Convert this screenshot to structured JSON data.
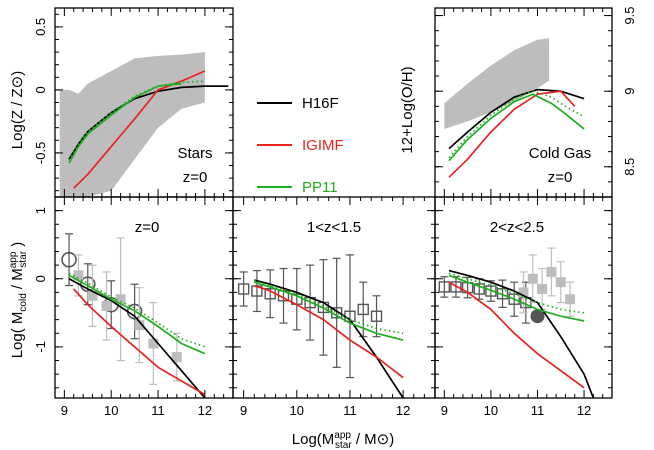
{
  "figure": {
    "xlabel": "Log(M",
    "xlabel_sup": "app",
    "xlabel_sub": "star",
    "xlabel_tail": " / M⊙)",
    "ylabel_top_left": "Log(Z / Z⊙)",
    "ylabel_top_right": "12+Log(O/H)",
    "ylabel_bottom": "Log( M",
    "ylabel_bottom_sub1": "cold",
    "ylabel_bottom_mid": " / M",
    "ylabel_bottom_sup": "app",
    "ylabel_bottom_sub2": "star",
    "ylabel_bottom_tail": " )"
  },
  "legend": [
    {
      "label": "H16F",
      "color": "#000000"
    },
    {
      "label": "IGIMF",
      "color": "#e8221e"
    },
    {
      "label": "PP11",
      "color": "#1fae1f"
    }
  ],
  "colors": {
    "H16F": "#000000",
    "IGIMF": "#e8221e",
    "PP11": "#1fae1f",
    "obs_band": "#bdbdbd",
    "obs_light": "#bdbdbd",
    "obs_dark": "#555555"
  },
  "panel_labels": {
    "stars": [
      "Stars",
      "z=0"
    ],
    "gas": [
      "Cold Gas",
      "z=0"
    ],
    "b1": "z=0",
    "b2": "1<z<1.5",
    "b3": "2<z<2.5"
  },
  "x_ticks": [
    "9",
    "10",
    "11",
    "12"
  ],
  "y_ticks_left_top": [
    "0.5",
    "0",
    "-0.5"
  ],
  "y_ticks_right_top": [
    "9.5",
    "9",
    "8.5"
  ],
  "y_ticks_bottom": [
    "1",
    "0",
    "-1"
  ],
  "chart_data": [
    {
      "type": "line",
      "id": "stars",
      "title": "",
      "xlabel": "",
      "ylabel": "Log(Z / Z⊙)",
      "xlim": [
        8.8,
        12.6
      ],
      "ylim": [
        -0.85,
        0.65
      ],
      "band": {
        "x": [
          8.9,
          9.1,
          9.3,
          9.5,
          10,
          10.5,
          11,
          11.5,
          12
        ],
        "upper": [
          0.0,
          0.0,
          -0.03,
          0.05,
          0.15,
          0.25,
          0.27,
          0.28,
          0.3
        ],
        "lower": [
          -0.85,
          -0.85,
          -0.85,
          -0.85,
          -0.8,
          -0.55,
          -0.3,
          -0.15,
          -0.1
        ]
      },
      "series": [
        {
          "name": "H16F",
          "style": "solid",
          "x": [
            9.1,
            9.3,
            9.5,
            10,
            10.5,
            11,
            11.5,
            12,
            12.5
          ],
          "y": [
            -0.55,
            -0.43,
            -0.33,
            -0.18,
            -0.07,
            -0.01,
            0.02,
            0.03,
            0.03
          ]
        },
        {
          "name": "IGIMF",
          "style": "solid",
          "x": [
            9.2,
            9.5,
            10,
            10.5,
            11,
            11.5,
            12
          ],
          "y": [
            -0.78,
            -0.67,
            -0.45,
            -0.23,
            0.0,
            0.07,
            0.15
          ]
        },
        {
          "name": "PP11",
          "style": "solid",
          "x": [
            9.1,
            9.3,
            9.5,
            10,
            10.5,
            11,
            11.5
          ],
          "y": [
            -0.58,
            -0.45,
            -0.35,
            -0.2,
            -0.06,
            0.03,
            0.05
          ]
        },
        {
          "name": "PP11",
          "style": "dotted",
          "x": [
            9.1,
            9.3,
            9.5,
            10,
            10.5,
            11,
            11.5,
            12
          ],
          "y": [
            -0.56,
            -0.43,
            -0.33,
            -0.18,
            -0.05,
            0.03,
            0.06,
            0.07
          ]
        }
      ]
    },
    {
      "type": "line",
      "id": "gas",
      "title": "",
      "xlabel": "",
      "ylabel": "12+Log(O/H)",
      "xlim": [
        8.8,
        12.6
      ],
      "ylim": [
        8.3,
        9.55
      ],
      "band": {
        "x": [
          9.0,
          9.5,
          10,
          10.5,
          11,
          11.25
        ],
        "upper": [
          8.92,
          9.05,
          9.17,
          9.27,
          9.34,
          9.35
        ],
        "lower": [
          8.75,
          8.8,
          8.86,
          8.93,
          9.02,
          9.07
        ]
      },
      "series": [
        {
          "name": "H16F",
          "style": "solid",
          "x": [
            9.1,
            9.5,
            10,
            10.5,
            11,
            11.5,
            12
          ],
          "y": [
            8.62,
            8.73,
            8.86,
            8.96,
            9.01,
            9.0,
            8.95
          ]
        },
        {
          "name": "IGIMF",
          "style": "solid",
          "x": [
            9.1,
            9.5,
            10,
            10.5,
            11,
            11.5,
            11.8
          ],
          "y": [
            8.43,
            8.55,
            8.73,
            8.88,
            8.98,
            9.0,
            8.9
          ]
        },
        {
          "name": "PP11",
          "style": "solid",
          "x": [
            9.1,
            9.5,
            10,
            10.5,
            10.9,
            11.3,
            11.6,
            12
          ],
          "y": [
            8.54,
            8.68,
            8.82,
            8.93,
            8.98,
            8.92,
            8.85,
            8.75
          ]
        },
        {
          "name": "PP11",
          "style": "dotted",
          "x": [
            9.1,
            9.5,
            10,
            10.5,
            10.9,
            11.3,
            11.6,
            12
          ],
          "y": [
            8.56,
            8.7,
            8.84,
            8.95,
            9.0,
            8.96,
            8.9,
            8.83
          ]
        }
      ]
    },
    {
      "type": "scatter",
      "id": "b1",
      "title": "z=0",
      "xlabel": "",
      "ylabel": "",
      "xlim": [
        8.8,
        12.6
      ],
      "ylim": [
        -1.75,
        1.2
      ],
      "series": [
        {
          "name": "H16F",
          "style": "solid",
          "x": [
            9.1,
            9.5,
            10,
            10.5,
            11,
            11.5,
            12
          ],
          "y": [
            0.0,
            -0.15,
            -0.32,
            -0.55,
            -0.95,
            -1.35,
            -1.75
          ]
        },
        {
          "name": "IGIMF",
          "style": "solid",
          "x": [
            9.2,
            9.5,
            10,
            10.5,
            11,
            11.5,
            12
          ],
          "y": [
            -0.15,
            -0.38,
            -0.7,
            -1.0,
            -1.3,
            -1.5,
            -1.7
          ]
        },
        {
          "name": "PP11",
          "style": "solid",
          "x": [
            9.1,
            9.5,
            10,
            10.5,
            11,
            11.5,
            12
          ],
          "y": [
            0.05,
            -0.1,
            -0.3,
            -0.47,
            -0.7,
            -0.95,
            -1.1
          ]
        },
        {
          "name": "PP11",
          "style": "dotted",
          "x": [
            9.1,
            9.5,
            10,
            10.5,
            11,
            11.5,
            12
          ],
          "y": [
            0.08,
            -0.06,
            -0.27,
            -0.43,
            -0.65,
            -0.88,
            -1.0
          ]
        }
      ],
      "points": [
        {
          "x": 9.1,
          "y": 0.28,
          "err": 0.38,
          "marker": "circle",
          "tone": "dark"
        },
        {
          "x": 9.5,
          "y": -0.08,
          "err": 0.3,
          "marker": "circle",
          "tone": "dark"
        },
        {
          "x": 10.0,
          "y": -0.38,
          "err": 0.35,
          "marker": "circle",
          "tone": "dark"
        },
        {
          "x": 10.5,
          "y": -0.48,
          "err": 0.4,
          "marker": "circle",
          "tone": "dark"
        },
        {
          "x": 9.3,
          "y": 0.05,
          "err": 0.3,
          "marker": "square",
          "tone": "light"
        },
        {
          "x": 9.6,
          "y": -0.25,
          "err": 0.45,
          "marker": "square",
          "tone": "light"
        },
        {
          "x": 9.9,
          "y": -0.4,
          "err": 0.5,
          "marker": "square",
          "tone": "light"
        },
        {
          "x": 10.2,
          "y": -0.3,
          "err": 0.9,
          "marker": "square",
          "tone": "light"
        },
        {
          "x": 10.6,
          "y": -0.68,
          "err": 0.55,
          "marker": "square",
          "tone": "light"
        },
        {
          "x": 10.9,
          "y": -0.95,
          "err": 0.6,
          "marker": "square",
          "tone": "light"
        },
        {
          "x": 11.4,
          "y": -1.15,
          "err": 0.35,
          "marker": "square",
          "tone": "light"
        }
      ]
    },
    {
      "type": "scatter",
      "id": "b2",
      "title": "1<z<1.5",
      "xlabel": "",
      "ylabel": "",
      "xlim": [
        8.8,
        12.6
      ],
      "ylim": [
        -1.75,
        1.2
      ],
      "series": [
        {
          "name": "H16F",
          "style": "solid",
          "x": [
            9.2,
            9.5,
            10,
            10.5,
            11,
            11.5,
            12
          ],
          "y": [
            -0.02,
            -0.08,
            -0.2,
            -0.35,
            -0.6,
            -1.15,
            -1.75
          ]
        },
        {
          "name": "IGIMF",
          "style": "solid",
          "x": [
            9.2,
            9.5,
            10,
            10.5,
            11,
            11.5,
            12
          ],
          "y": [
            -0.1,
            -0.18,
            -0.38,
            -0.6,
            -0.9,
            -1.15,
            -1.45
          ]
        },
        {
          "name": "PP11",
          "style": "solid",
          "x": [
            9.2,
            9.5,
            10,
            10.5,
            11,
            11.5,
            12
          ],
          "y": [
            -0.05,
            -0.12,
            -0.25,
            -0.43,
            -0.65,
            -0.8,
            -0.9
          ]
        },
        {
          "name": "PP11",
          "style": "dotted",
          "x": [
            9.2,
            9.5,
            10,
            10.5,
            11,
            11.5,
            12
          ],
          "y": [
            -0.03,
            -0.1,
            -0.22,
            -0.4,
            -0.6,
            -0.73,
            -0.8
          ]
        }
      ],
      "points": [
        {
          "x": 9.0,
          "y": -0.15,
          "err": 0.25,
          "marker": "square",
          "tone": "dark"
        },
        {
          "x": 9.25,
          "y": -0.18,
          "err": 0.3,
          "marker": "square",
          "tone": "dark"
        },
        {
          "x": 9.5,
          "y": -0.22,
          "err": 0.35,
          "marker": "square",
          "tone": "dark"
        },
        {
          "x": 9.75,
          "y": -0.25,
          "err": 0.4,
          "marker": "square",
          "tone": "dark"
        },
        {
          "x": 10.0,
          "y": -0.3,
          "err": 0.45,
          "marker": "square",
          "tone": "dark"
        },
        {
          "x": 10.25,
          "y": -0.35,
          "err": 0.55,
          "marker": "square",
          "tone": "dark"
        },
        {
          "x": 10.5,
          "y": -0.42,
          "err": 0.7,
          "marker": "square",
          "tone": "dark"
        },
        {
          "x": 10.75,
          "y": -0.5,
          "err": 0.8,
          "marker": "square",
          "tone": "dark"
        },
        {
          "x": 11.0,
          "y": -0.55,
          "err": 0.9,
          "marker": "square",
          "tone": "dark"
        },
        {
          "x": 11.25,
          "y": -0.45,
          "err": 0.4,
          "marker": "square",
          "tone": "dark"
        },
        {
          "x": 11.5,
          "y": -0.55,
          "err": 0.3,
          "marker": "square",
          "tone": "dark"
        }
      ]
    },
    {
      "type": "scatter",
      "id": "b3",
      "title": "2<z<2.5",
      "xlabel": "",
      "ylabel": "",
      "xlim": [
        8.8,
        12.6
      ],
      "ylim": [
        -1.75,
        1.2
      ],
      "series": [
        {
          "name": "H16F",
          "style": "solid",
          "x": [
            9.1,
            9.5,
            10,
            10.5,
            11,
            11.5,
            12,
            12.2
          ],
          "y": [
            0.12,
            0.05,
            -0.05,
            -0.18,
            -0.35,
            -0.85,
            -1.4,
            -1.75
          ]
        },
        {
          "name": "IGIMF",
          "style": "solid",
          "x": [
            9.1,
            9.5,
            10,
            10.5,
            11,
            11.5,
            12
          ],
          "y": [
            -0.05,
            -0.2,
            -0.45,
            -0.8,
            -1.1,
            -1.35,
            -1.6
          ]
        },
        {
          "name": "PP11",
          "style": "solid",
          "x": [
            9.1,
            9.5,
            10,
            10.5,
            11,
            11.5,
            12
          ],
          "y": [
            0.05,
            -0.05,
            -0.17,
            -0.3,
            -0.45,
            -0.55,
            -0.62
          ]
        },
        {
          "name": "PP11",
          "style": "dotted",
          "x": [
            9.1,
            9.5,
            10,
            10.5,
            11,
            11.5,
            12
          ],
          "y": [
            0.08,
            0.0,
            -0.1,
            -0.22,
            -0.35,
            -0.45,
            -0.5
          ]
        }
      ],
      "points": [
        {
          "x": 9.0,
          "y": -0.12,
          "err": 0.15,
          "marker": "square",
          "tone": "dark"
        },
        {
          "x": 9.25,
          "y": -0.12,
          "err": 0.15,
          "marker": "square",
          "tone": "dark"
        },
        {
          "x": 9.5,
          "y": -0.13,
          "err": 0.15,
          "marker": "square",
          "tone": "dark"
        },
        {
          "x": 9.75,
          "y": -0.15,
          "err": 0.15,
          "marker": "square",
          "tone": "dark"
        },
        {
          "x": 10.0,
          "y": -0.18,
          "err": 0.15,
          "marker": "square",
          "tone": "dark"
        },
        {
          "x": 10.25,
          "y": -0.22,
          "err": 0.2,
          "marker": "square",
          "tone": "dark"
        },
        {
          "x": 10.5,
          "y": -0.3,
          "err": 0.25,
          "marker": "square",
          "tone": "dark"
        },
        {
          "x": 10.75,
          "y": -0.35,
          "err": 0.3,
          "marker": "square",
          "tone": "dark"
        },
        {
          "x": 11.0,
          "y": -0.55,
          "err": 0.0,
          "marker": "filled-circle",
          "tone": "dark"
        },
        {
          "x": 10.7,
          "y": -0.2,
          "err": 0.3,
          "marker": "square",
          "tone": "light"
        },
        {
          "x": 10.9,
          "y": 0.0,
          "err": 0.35,
          "marker": "square",
          "tone": "light"
        },
        {
          "x": 11.1,
          "y": -0.15,
          "err": 0.3,
          "marker": "square",
          "tone": "light"
        },
        {
          "x": 11.3,
          "y": 0.1,
          "err": 0.35,
          "marker": "square",
          "tone": "light"
        },
        {
          "x": 11.5,
          "y": -0.05,
          "err": 0.3,
          "marker": "square",
          "tone": "light"
        },
        {
          "x": 11.7,
          "y": -0.3,
          "err": 0.25,
          "marker": "square",
          "tone": "light"
        }
      ]
    }
  ]
}
